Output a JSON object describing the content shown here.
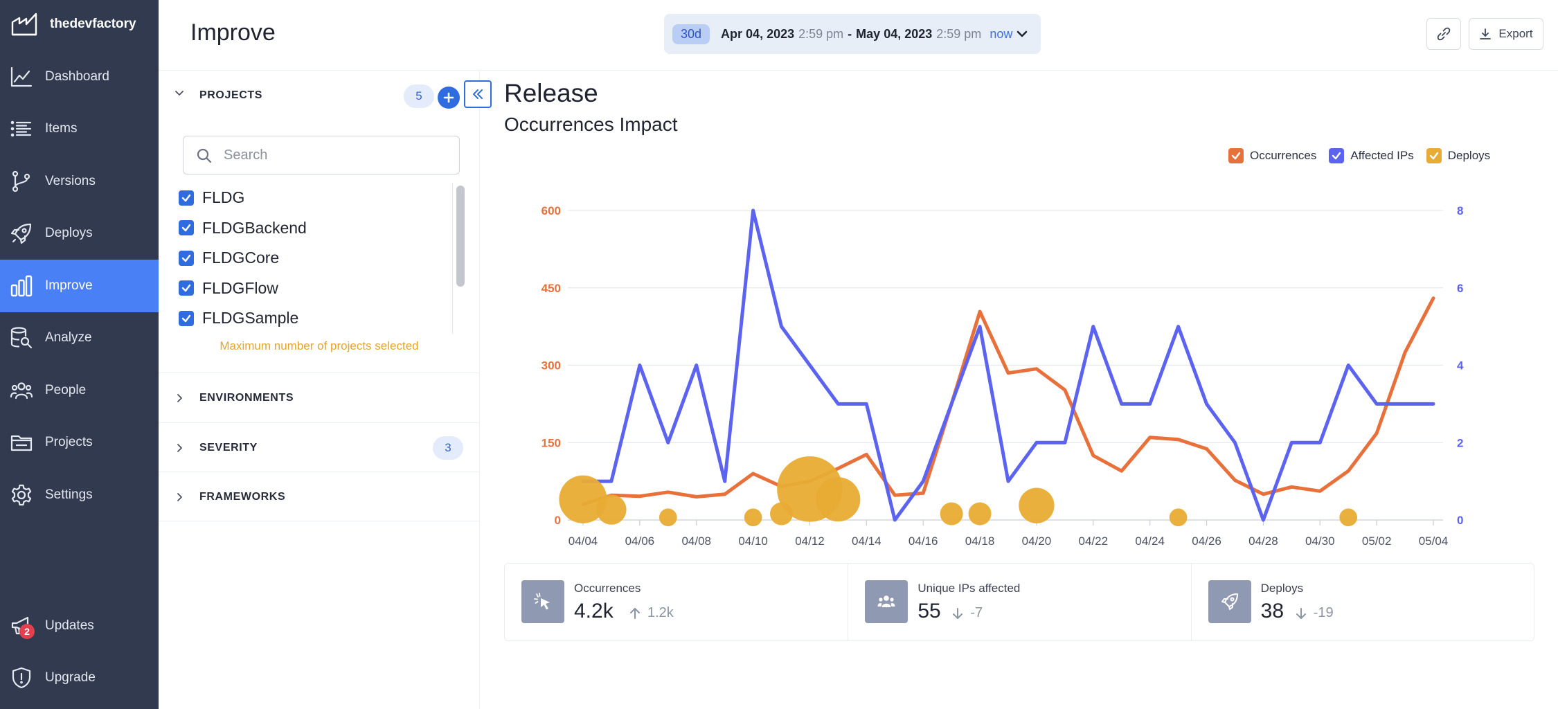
{
  "app": {
    "brand": "thedevfactory",
    "page_title": "Improve"
  },
  "sidebar": {
    "items": [
      {
        "label": "Dashboard",
        "icon": "chart-line-icon"
      },
      {
        "label": "Items",
        "icon": "list-icon"
      },
      {
        "label": "Versions",
        "icon": "branch-icon"
      },
      {
        "label": "Deploys",
        "icon": "rocket-icon"
      },
      {
        "label": "Improve",
        "icon": "bar-chart-icon",
        "active": true
      },
      {
        "label": "Analyze",
        "icon": "database-search-icon"
      },
      {
        "label": "People",
        "icon": "people-icon"
      },
      {
        "label": "Projects",
        "icon": "folder-icon"
      },
      {
        "label": "Settings",
        "icon": "gear-icon"
      }
    ],
    "bottom": [
      {
        "label": "Updates",
        "icon": "megaphone-icon",
        "badge": "2"
      },
      {
        "label": "Upgrade",
        "icon": "shield-icon"
      }
    ]
  },
  "date_range": {
    "preset": "30d",
    "start_date": "Apr 04, 2023",
    "start_time": "2:59 pm",
    "separator": "-",
    "end_date": "May 04, 2023",
    "end_time": "2:59 pm",
    "now_label": "now"
  },
  "header": {
    "export_label": "Export"
  },
  "filters": {
    "projects": {
      "label": "PROJECTS",
      "count": "5",
      "search_placeholder": "Search",
      "items": [
        "FLDG",
        "FLDGBackend",
        "FLDGCore",
        "FLDGFlow",
        "FLDGSample"
      ],
      "max_note": "Maximum number of projects selected"
    },
    "environments": {
      "label": "ENVIRONMENTS"
    },
    "severity": {
      "label": "SEVERITY",
      "count": "3"
    },
    "frameworks": {
      "label": "FRAMEWORKS"
    }
  },
  "main": {
    "title": "Release",
    "subtitle": "Occurrences Impact"
  },
  "legend": [
    {
      "label": "Occurrences",
      "color": "#e8703a"
    },
    {
      "label": "Affected IPs",
      "color": "#5b63f0"
    },
    {
      "label": "Deploys",
      "color": "#e8ac34"
    }
  ],
  "chart_data": {
    "type": "line",
    "x": [
      "04/04",
      "04/05",
      "04/06",
      "04/07",
      "04/08",
      "04/09",
      "04/10",
      "04/11",
      "04/12",
      "04/13",
      "04/14",
      "04/15",
      "04/16",
      "04/17",
      "04/18",
      "04/19",
      "04/20",
      "04/21",
      "04/22",
      "04/23",
      "04/24",
      "04/25",
      "04/26",
      "04/27",
      "04/28",
      "04/29",
      "04/30",
      "05/01",
      "05/02",
      "05/03",
      "05/04"
    ],
    "x_tick_labels": [
      "04/04",
      "04/06",
      "04/08",
      "04/10",
      "04/12",
      "04/14",
      "04/16",
      "04/18",
      "04/20",
      "04/22",
      "04/24",
      "04/26",
      "04/28",
      "04/30",
      "05/02",
      "05/04"
    ],
    "y_left": {
      "ticks": [
        0,
        150,
        300,
        450,
        600
      ],
      "range": [
        0,
        600
      ],
      "color": "#e8703a"
    },
    "y_right": {
      "ticks": [
        0,
        2,
        4,
        6,
        8
      ],
      "range": [
        0,
        8
      ],
      "color": "#5b63f0"
    },
    "grid": true,
    "legend_position": "top-right",
    "series": [
      {
        "name": "Occurrences",
        "axis": "left",
        "color": "#e8703a",
        "values": [
          30,
          48,
          46,
          54,
          45,
          50,
          90,
          65,
          75,
          100,
          127,
          48,
          52,
          225,
          404,
          285,
          293,
          252,
          125,
          95,
          160,
          156,
          138,
          77,
          50,
          64,
          56,
          95,
          168,
          325,
          430
        ]
      },
      {
        "name": "Affected IPs",
        "axis": "right",
        "color": "#5b63f0",
        "values": [
          1,
          1,
          4,
          2,
          4,
          1,
          8,
          5,
          4,
          3,
          3,
          0,
          1,
          3,
          5,
          1,
          2,
          2,
          5,
          3,
          3,
          5,
          3,
          2,
          0,
          2,
          2,
          4,
          3,
          3,
          3
        ]
      },
      {
        "name": "Deploys",
        "type": "bubble",
        "color": "#e8ac34",
        "points": [
          {
            "x": "04/04",
            "y": 40,
            "size": 6
          },
          {
            "x": "04/05",
            "y": 20,
            "size": 2
          },
          {
            "x": "04/07",
            "y": 5,
            "size": 0.5
          },
          {
            "x": "04/10",
            "y": 5,
            "size": 0.5
          },
          {
            "x": "04/11",
            "y": 12,
            "size": 1
          },
          {
            "x": "04/12",
            "y": 60,
            "size": 12
          },
          {
            "x": "04/13",
            "y": 40,
            "size": 5
          },
          {
            "x": "04/17",
            "y": 12,
            "size": 1
          },
          {
            "x": "04/18",
            "y": 12,
            "size": 1
          },
          {
            "x": "04/20",
            "y": 28,
            "size": 3
          },
          {
            "x": "04/25",
            "y": 5,
            "size": 0.5
          },
          {
            "x": "05/01",
            "y": 5,
            "size": 0.5
          }
        ]
      }
    ]
  },
  "stats": [
    {
      "label": "Occurrences",
      "value": "4.2k",
      "delta": "1.2k",
      "direction": "up",
      "icon": "cursor-click-icon"
    },
    {
      "label": "Unique IPs affected",
      "value": "55",
      "delta": "-7",
      "direction": "down",
      "icon": "people-icon"
    },
    {
      "label": "Deploys",
      "value": "38",
      "delta": "-19",
      "direction": "down",
      "icon": "rocket-icon"
    }
  ]
}
